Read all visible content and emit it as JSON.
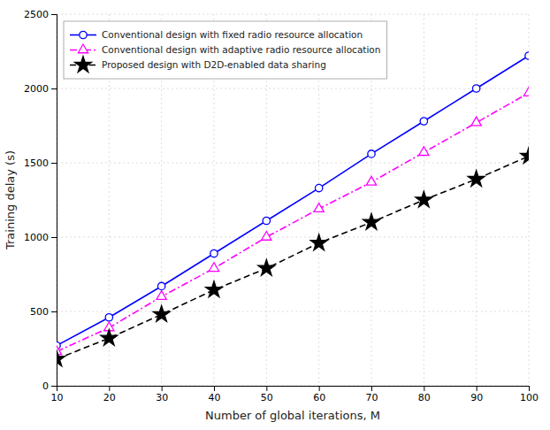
{
  "chart_data": {
    "type": "line",
    "x": [
      10,
      20,
      30,
      40,
      50,
      60,
      70,
      80,
      90,
      100
    ],
    "series": [
      {
        "name": "Conventional design with fixed radio resource allocation",
        "color": "#0000ff",
        "marker": "circle",
        "line_style": "solid",
        "values": [
          270,
          460,
          670,
          890,
          1110,
          1330,
          1560,
          1780,
          2000,
          2220
        ]
      },
      {
        "name": "Conventional design with adaptive radio resource allocation",
        "color": "#ff00ff",
        "marker": "triangle",
        "line_style": "dashdot",
        "values": [
          230,
          390,
          600,
          790,
          1000,
          1190,
          1370,
          1570,
          1770,
          1970
        ]
      },
      {
        "name": "Proposed design with D2D-enabled data sharing",
        "color": "#000000",
        "marker": "star",
        "line_style": "dashed",
        "values": [
          180,
          320,
          480,
          645,
          790,
          960,
          1100,
          1250,
          1390,
          1545
        ]
      }
    ],
    "xlabel": "Number of global iterations, M",
    "ylabel": "Training delay (s)",
    "xlim": [
      10,
      100
    ],
    "ylim": [
      0,
      2500
    ],
    "xticks": [
      10,
      20,
      30,
      40,
      50,
      60,
      70,
      80,
      90,
      100
    ],
    "yticks": [
      0,
      500,
      1000,
      1500,
      2000,
      2500
    ],
    "grid": true,
    "legend": "upper left"
  }
}
